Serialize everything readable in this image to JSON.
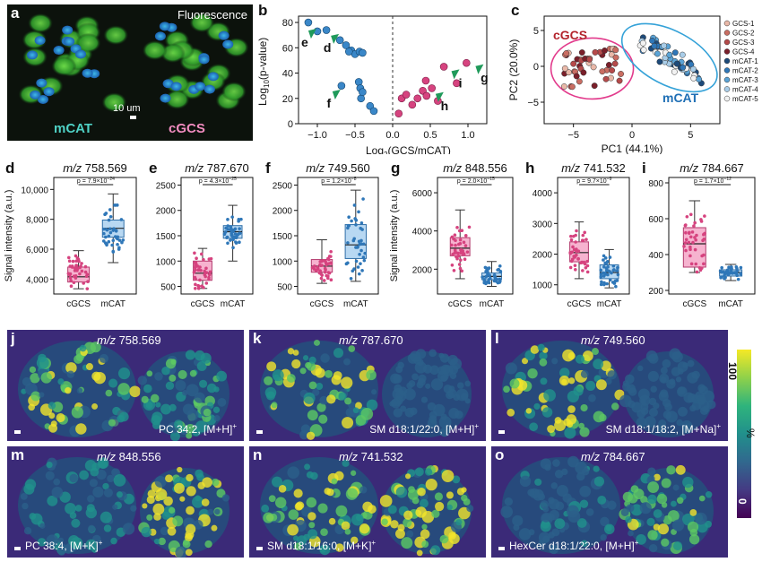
{
  "panel_a": {
    "label": "a",
    "header": "Fluorescence",
    "scale_bar": "10 um",
    "left_label": "mCAT",
    "right_label": "cGCS",
    "left_label_color": "#4fd1c5",
    "right_label_color": "#f28cc0"
  },
  "chart_b": {
    "label": "b",
    "type": "scatter",
    "xlabel_main": "Log",
    "xlabel_sub": "2",
    "xlabel_rest": "(GCS/mCAT)",
    "ylabel_main": "Log",
    "ylabel_sub": "10",
    "ylabel_rest": "(p-value)",
    "xlim": [
      -1.25,
      1.25
    ],
    "ylim": [
      0,
      85
    ],
    "xticks": [
      -1.0,
      -0.5,
      0.0,
      0.5,
      1.0
    ],
    "xtick_labels": [
      "−1.0",
      "−0.5",
      "0.0",
      "0.5",
      "1.0"
    ],
    "yticks": [
      0,
      20,
      40,
      60,
      80
    ],
    "blue_points": [
      [
        -1.12,
        80
      ],
      [
        -1.0,
        73
      ],
      [
        -0.88,
        74
      ],
      [
        -0.7,
        66
      ],
      [
        -0.62,
        62
      ],
      [
        -0.55,
        58
      ],
      [
        -0.5,
        55
      ],
      [
        -0.44,
        57
      ],
      [
        -0.4,
        56
      ],
      [
        -0.58,
        57
      ],
      [
        -0.45,
        33
      ],
      [
        -0.43,
        28
      ],
      [
        -0.42,
        20
      ],
      [
        -0.4,
        25
      ],
      [
        -0.3,
        14
      ],
      [
        -0.25,
        10
      ],
      [
        -0.68,
        30
      ]
    ],
    "pink_points": [
      [
        0.08,
        8
      ],
      [
        0.12,
        20
      ],
      [
        0.18,
        23
      ],
      [
        0.26,
        15
      ],
      [
        0.33,
        20
      ],
      [
        0.4,
        26
      ],
      [
        0.45,
        22
      ],
      [
        0.52,
        28
      ],
      [
        0.6,
        18
      ],
      [
        0.68,
        45
      ],
      [
        0.85,
        32
      ],
      [
        0.98,
        48
      ],
      [
        0.44,
        34
      ]
    ],
    "markers": [
      {
        "text": "e",
        "x": -1.12,
        "y": 70
      },
      {
        "text": "d",
        "x": -0.82,
        "y": 66
      },
      {
        "text": "f",
        "x": -0.8,
        "y": 22
      },
      {
        "text": "h",
        "x": 0.57,
        "y": 20
      },
      {
        "text": "i",
        "x": 0.78,
        "y": 38
      },
      {
        "text": "g",
        "x": 1.1,
        "y": 42
      }
    ],
    "blue_color": "#3a87c8",
    "pink_color": "#d6437f",
    "marker_color": "#1f9a5a"
  },
  "chart_c": {
    "label": "c",
    "type": "scatter",
    "xlabel": "PC1 (44.1%)",
    "ylabel": "PC2 (20.0%)",
    "xlim": [
      -7.5,
      7.5
    ],
    "ylim": [
      -8,
      7
    ],
    "xticks": [
      -5,
      0,
      5
    ],
    "yticks": [
      -5,
      0,
      5
    ],
    "ytick_labels": [
      "−5",
      "0",
      "5"
    ],
    "xtick_labels": [
      "−5",
      "0",
      "5"
    ],
    "cluster_left_label": "cGCS",
    "cluster_right_label": "mCAT",
    "legend": [
      "GCS-1",
      "GCS-2",
      "GCS-3",
      "GCS-4",
      "mCAT-1",
      "mCAT-2",
      "mCAT-3",
      "mCAT-4",
      "mCAT-5"
    ],
    "legend_colors": [
      "#e9b8a8",
      "#c96d62",
      "#b54a4a",
      "#7a1f2a",
      "#1d4a7a",
      "#2f77b8",
      "#5aa3d6",
      "#a9cde8",
      "#f2f2f2"
    ],
    "ellipse_left_color": "#e23b8c",
    "ellipse_right_color": "#35a2d8"
  },
  "box_d": {
    "label": "d",
    "title_mz": "m/z",
    "title_val": "758.569",
    "pvalue": "p = 7.9×10",
    "pvalue_exp": "−24",
    "ylabel": "Signal intensity (a.u.)",
    "ylim": [
      3000,
      10800
    ],
    "yticks": [
      4000,
      6000,
      8000,
      10000
    ],
    "ytick_labels": [
      "4,000",
      "6,000",
      "8,000",
      "10,000"
    ],
    "categories": [
      "cGCS",
      "mCAT"
    ],
    "boxes": [
      {
        "q1": 3800,
        "median": 4150,
        "q3": 4800,
        "min": 3350,
        "max": 5900
      },
      {
        "q1": 6800,
        "median": 7400,
        "q3": 7950,
        "min": 5100,
        "max": 9700
      }
    ]
  },
  "box_e": {
    "label": "e",
    "title_mz": "m/z",
    "title_val": "787.670",
    "pvalue": "p = 4.3×10",
    "pvalue_exp": "−25",
    "ylim": [
      350,
      2650
    ],
    "yticks": [
      500,
      1000,
      1500,
      2000,
      2500
    ],
    "ytick_labels": [
      "500",
      "1000",
      "1500",
      "2000",
      "2500"
    ],
    "categories": [
      "cGCS",
      "mCAT"
    ],
    "boxes": [
      {
        "q1": 620,
        "median": 760,
        "q3": 1000,
        "min": 460,
        "max": 1250
      },
      {
        "q1": 1450,
        "median": 1580,
        "q3": 1700,
        "min": 1000,
        "max": 2100
      }
    ]
  },
  "box_f": {
    "label": "f",
    "title_mz": "m/z",
    "title_val": "749.560",
    "pvalue": "p = 1.2×10",
    "pvalue_exp": "−8",
    "ylim": [
      350,
      2650
    ],
    "yticks": [
      500,
      1000,
      1500,
      2000,
      2500
    ],
    "ytick_labels": [
      "500",
      "1000",
      "1500",
      "2000",
      "2500"
    ],
    "categories": [
      "cGCS",
      "mCAT"
    ],
    "boxes": [
      {
        "q1": 780,
        "median": 900,
        "q3": 1030,
        "min": 560,
        "max": 1420
      },
      {
        "q1": 1050,
        "median": 1320,
        "q3": 1720,
        "min": 600,
        "max": 2400
      }
    ]
  },
  "box_g": {
    "label": "g",
    "title_mz": "m/z",
    "title_val": "848.556",
    "pvalue": "p = 2.0×10",
    "pvalue_exp": "−15",
    "ylabel": "Signal intensity (a.u.)",
    "ylim": [
      700,
      6800
    ],
    "yticks": [
      2000,
      4000,
      6000
    ],
    "ytick_labels": [
      "2000",
      "4000",
      "6000"
    ],
    "categories": [
      "cGCS",
      "mCAT"
    ],
    "boxes": [
      {
        "q1": 2700,
        "median": 3100,
        "q3": 3650,
        "min": 1500,
        "max": 5100
      },
      {
        "q1": 1450,
        "median": 1620,
        "q3": 1800,
        "min": 1100,
        "max": 2400
      }
    ]
  },
  "box_h": {
    "label": "h",
    "title_mz": "m/z",
    "title_val": "741.532",
    "pvalue": "p = 9.7×10",
    "pvalue_exp": "−9",
    "ylim": [
      700,
      4500
    ],
    "yticks": [
      1000,
      2000,
      3000,
      4000
    ],
    "ytick_labels": [
      "1000",
      "2000",
      "3000",
      "4000"
    ],
    "categories": [
      "cGCS",
      "mCAT"
    ],
    "boxes": [
      {
        "q1": 1750,
        "median": 2050,
        "q3": 2400,
        "min": 1200,
        "max": 3050
      },
      {
        "q1": 1200,
        "median": 1400,
        "q3": 1650,
        "min": 900,
        "max": 2150
      }
    ]
  },
  "box_i": {
    "label": "i",
    "title_mz": "m/z",
    "title_val": "784.667",
    "pvalue": "p = 1.7×10",
    "pvalue_exp": "−12",
    "ylim": [
      180,
      830
    ],
    "yticks": [
      200,
      400,
      600,
      800
    ],
    "ytick_labels": [
      "200",
      "400",
      "600",
      "800"
    ],
    "categories": [
      "cGCS",
      "mCAT"
    ],
    "boxes": [
      {
        "q1": 330,
        "median": 460,
        "q3": 550,
        "min": 300,
        "max": 700
      },
      {
        "q1": 280,
        "median": 300,
        "q3": 315,
        "min": 255,
        "max": 345
      }
    ]
  },
  "images": [
    {
      "label": "j",
      "mz": "m/z",
      "mz_val": "758.569",
      "annotation": "PC 34:2, [M+H]",
      "sup": "+"
    },
    {
      "label": "k",
      "mz": "m/z",
      "mz_val": "787.670",
      "annotation": "SM d18:1/22:0, [M+H]",
      "sup": "+"
    },
    {
      "label": "l",
      "mz": "m/z",
      "mz_val": "749.560",
      "annotation": "SM d18:1/18:2, [M+Na]",
      "sup": "+"
    },
    {
      "label": "m",
      "mz": "m/z",
      "mz_val": "848.556",
      "annotation": "PC 38:4, [M+K]",
      "sup": "+"
    },
    {
      "label": "n",
      "mz": "m/z",
      "mz_val": "741.532",
      "annotation": "SM d18:1/16:0, [M+K]",
      "sup": "+"
    },
    {
      "label": "o",
      "mz": "m/z",
      "mz_val": "784.667",
      "annotation": "HexCer d18:1/22:0, [M+H]",
      "sup": "+"
    }
  ],
  "colorbar": {
    "top": "100",
    "unit": "%",
    "bottom": "0"
  }
}
